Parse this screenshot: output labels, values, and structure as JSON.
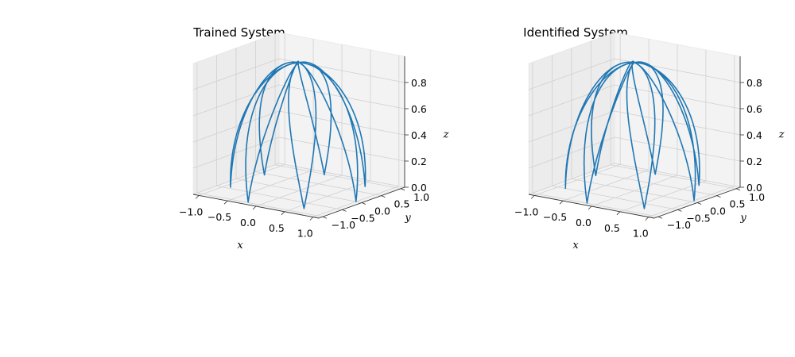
{
  "chart_data": [
    {
      "type": "line",
      "subtype": "3d-line",
      "title": "Trained System",
      "xlabel": "x",
      "ylabel": "y",
      "zlabel": "z",
      "xlim": [
        -1.1,
        1.1
      ],
      "ylim": [
        -1.1,
        1.1
      ],
      "zlim": [
        0.0,
        1.0
      ],
      "xticks": [
        "−1.0",
        "−0.5",
        "0.0",
        "0.5",
        "1.0"
      ],
      "yticks": [
        "−1.0",
        "−0.5",
        "0.0",
        "0.5",
        "1.0"
      ],
      "zticks": [
        "0.0",
        "0.2",
        "0.4",
        "0.6",
        "0.8"
      ],
      "grid": true,
      "line_color": "#1f77b4",
      "curve": {
        "description": "closed rose-like trajectory on a hemisphere",
        "petals": 7,
        "radius": 1.0,
        "z_peak": 0.98,
        "rotation_deg": 0
      }
    },
    {
      "type": "line",
      "subtype": "3d-line",
      "title": "Identified System",
      "xlabel": "x",
      "ylabel": "y",
      "zlabel": "z",
      "xlim": [
        -1.1,
        1.1
      ],
      "ylim": [
        -1.1,
        1.1
      ],
      "zlim": [
        0.0,
        1.0
      ],
      "xticks": [
        "−1.0",
        "−0.5",
        "0.0",
        "0.5",
        "1.0"
      ],
      "yticks": [
        "−1.0",
        "−0.5",
        "0.0",
        "0.5",
        "1.0"
      ],
      "zticks": [
        "0.0",
        "0.2",
        "0.4",
        "0.6",
        "0.8"
      ],
      "grid": true,
      "line_color": "#1f77b4",
      "curve": {
        "description": "closed rose-like trajectory on a hemisphere",
        "petals": 7,
        "radius": 1.0,
        "z_peak": 0.98,
        "rotation_deg": 4
      }
    }
  ]
}
